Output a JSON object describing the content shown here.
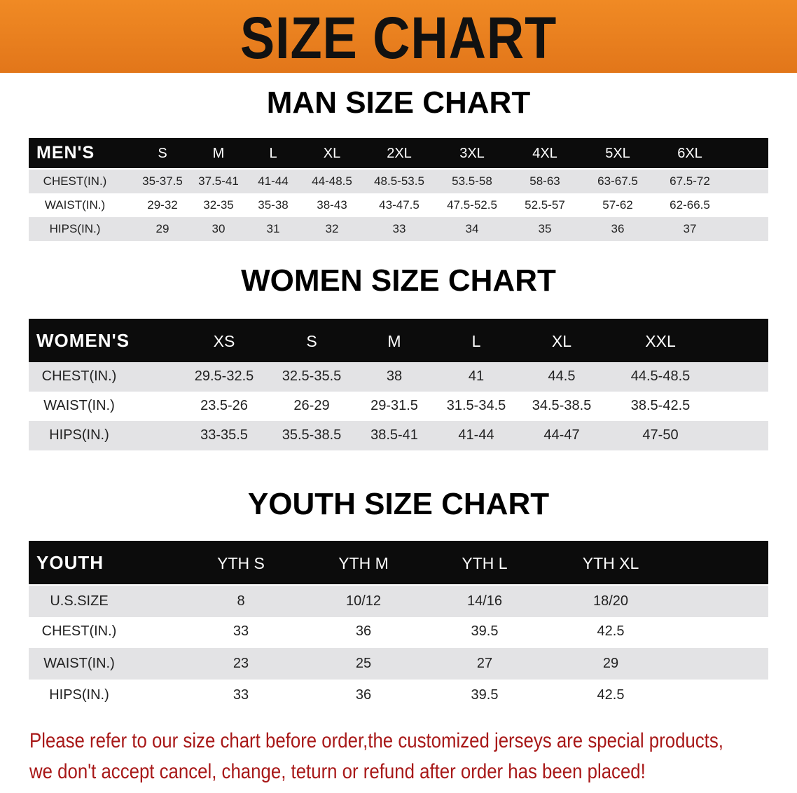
{
  "banner": {
    "title": "SIZE CHART",
    "color": "#e8801c"
  },
  "men": {
    "title": "MAN SIZE CHART",
    "header": "MEN'S",
    "sizes": [
      "S",
      "M",
      "L",
      "XL",
      "2XL",
      "3XL",
      "4XL",
      "5XL",
      "6XL"
    ],
    "rows": [
      {
        "label": "CHEST(IN.)",
        "values": [
          "35-37.5",
          "37.5-41",
          "41-44",
          "44-48.5",
          "48.5-53.5",
          "53.5-58",
          "58-63",
          "63-67.5",
          "67.5-72"
        ]
      },
      {
        "label": "WAIST(IN.)",
        "values": [
          "29-32",
          "32-35",
          "35-38",
          "38-43",
          "43-47.5",
          "47.5-52.5",
          "52.5-57",
          "57-62",
          "62-66.5"
        ]
      },
      {
        "label": "HIPS(IN.)",
        "values": [
          "29",
          "30",
          "31",
          "32",
          "33",
          "34",
          "35",
          "36",
          "37"
        ]
      }
    ]
  },
  "women": {
    "title": "WOMEN SIZE CHART",
    "header": "WOMEN'S",
    "sizes": [
      "XS",
      "S",
      "M",
      "L",
      "XL",
      "XXL"
    ],
    "rows": [
      {
        "label": "CHEST(IN.)",
        "values": [
          "29.5-32.5",
          "32.5-35.5",
          "38",
          "41",
          "44.5",
          "44.5-48.5"
        ]
      },
      {
        "label": "WAIST(IN.)",
        "values": [
          "23.5-26",
          "26-29",
          "29-31.5",
          "31.5-34.5",
          "34.5-38.5",
          "38.5-42.5"
        ]
      },
      {
        "label": "HIPS(IN.)",
        "values": [
          "33-35.5",
          "35.5-38.5",
          "38.5-41",
          "41-44",
          "44-47",
          "47-50"
        ]
      }
    ]
  },
  "youth": {
    "title": "YOUTH SIZE CHART",
    "header": "YOUTH",
    "sizes": [
      "YTH S",
      "YTH M",
      "YTH L",
      "YTH XL"
    ],
    "rows": [
      {
        "label": "U.S.SIZE",
        "values": [
          "8",
          "10/12",
          "14/16",
          "18/20"
        ]
      },
      {
        "label": "CHEST(IN.)",
        "values": [
          "33",
          "36",
          "39.5",
          "42.5"
        ]
      },
      {
        "label": "WAIST(IN.)",
        "values": [
          "23",
          "25",
          "27",
          "29"
        ]
      },
      {
        "label": "HIPS(IN.)",
        "values": [
          "33",
          "36",
          "39.5",
          "42.5"
        ]
      }
    ]
  },
  "note": {
    "line1": "Please refer to our size chart before order,the customized jerseys are special products,",
    "line2": "we don't accept cancel, change, teturn or refund after order has been placed!",
    "color": "#a81818"
  }
}
